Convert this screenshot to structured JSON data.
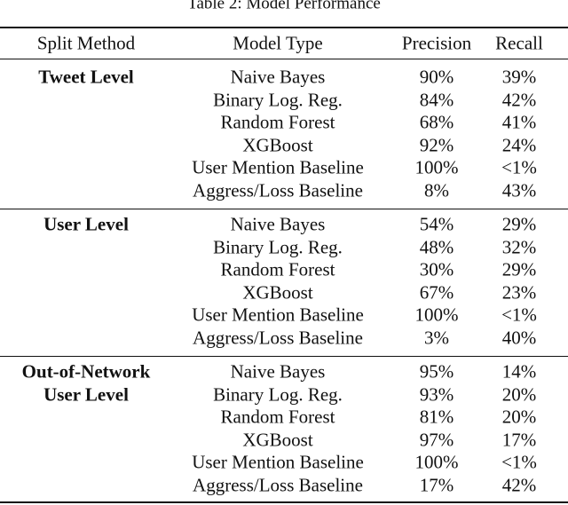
{
  "caption": "Table 2: Model Performance",
  "table": {
    "header": [
      "Split Method",
      "Model Type",
      "Precision",
      "Recall"
    ],
    "groups": [
      {
        "label": [
          "Tweet Level"
        ],
        "rows": [
          [
            "Naive Bayes",
            "90%",
            "39%"
          ],
          [
            "Binary Log. Reg.",
            "84%",
            "42%"
          ],
          [
            "Random Forest",
            "68%",
            "41%"
          ],
          [
            "XGBoost",
            "92%",
            "24%"
          ],
          [
            "User Mention Baseline",
            "100%",
            "<1%"
          ],
          [
            "Aggress/Loss Baseline",
            "8%",
            "43%"
          ]
        ]
      },
      {
        "label": [
          "User Level"
        ],
        "rows": [
          [
            "Naive Bayes",
            "54%",
            "29%"
          ],
          [
            "Binary Log. Reg.",
            "48%",
            "32%"
          ],
          [
            "Random Forest",
            "30%",
            "29%"
          ],
          [
            "XGBoost",
            "67%",
            "23%"
          ],
          [
            "User Mention Baseline",
            "100%",
            "<1%"
          ],
          [
            "Aggress/Loss Baseline",
            "3%",
            "40%"
          ]
        ]
      },
      {
        "label": [
          "Out-of-Network",
          "User Level"
        ],
        "rows": [
          [
            "Naive Bayes",
            "95%",
            "14%"
          ],
          [
            "Binary Log. Reg.",
            "93%",
            "20%"
          ],
          [
            "Random Forest",
            "81%",
            "20%"
          ],
          [
            "XGBoost",
            "97%",
            "17%"
          ],
          [
            "User Mention Baseline",
            "100%",
            "<1%"
          ],
          [
            "Aggress/Loss Baseline",
            "17%",
            "42%"
          ]
        ]
      }
    ]
  }
}
